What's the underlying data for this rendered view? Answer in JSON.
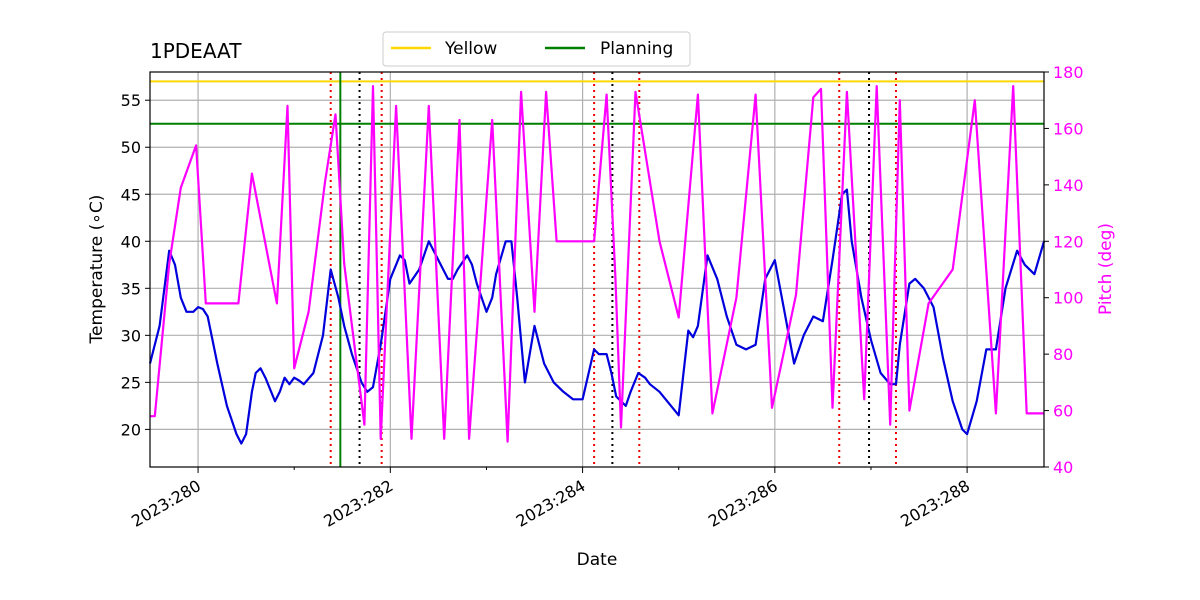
{
  "chart_data": {
    "type": "line",
    "title": "1PDEAAT",
    "xlabel": "Date",
    "ylabel": "Temperature ($^\\circ$C)",
    "ylabel_display": "Temperature (∘C)",
    "y2label": "Pitch (deg)",
    "xlim": [
      279.5,
      288.8
    ],
    "ylim": [
      16,
      58
    ],
    "y2lim": [
      40,
      180
    ],
    "x_ticks": [
      280,
      282,
      284,
      286,
      288
    ],
    "x_tick_labels": [
      "2023:280",
      "2023:282",
      "2023:284",
      "2023:286",
      "2023:288"
    ],
    "y_ticks": [
      20,
      25,
      30,
      35,
      40,
      45,
      50,
      55
    ],
    "y2_ticks": [
      40,
      60,
      80,
      100,
      120,
      140,
      160,
      180
    ],
    "grid": true,
    "legend": {
      "placement": "top-center",
      "entries": [
        {
          "name": "Yellow",
          "color": "#ffd700"
        },
        {
          "name": "Planning",
          "color": "#008000"
        }
      ]
    },
    "limits": {
      "yellow": 57.0,
      "planning": 52.5
    },
    "colors": {
      "temperature": "#0000dd",
      "pitch": "#ff00ff",
      "ylabel2": "#ff00ff"
    },
    "vlines_green": [
      281.48
    ],
    "vlines_red_dotted": [
      281.38,
      281.91,
      284.12,
      284.59,
      286.67,
      287.26
    ],
    "vlines_black_dotted": [
      281.68,
      284.31,
      286.98
    ],
    "series": [
      {
        "name": "Temperature",
        "axis": "left",
        "x": [
          279.5,
          279.6,
          279.7,
          279.76,
          279.82,
          279.88,
          279.95,
          280.0,
          280.05,
          280.1,
          280.2,
          280.3,
          280.4,
          280.45,
          280.5,
          280.56,
          280.6,
          280.65,
          280.7,
          280.8,
          280.85,
          280.9,
          280.95,
          281.0,
          281.05,
          281.1,
          281.2,
          281.3,
          281.38,
          281.46,
          281.52,
          281.6,
          281.7,
          281.76,
          281.82,
          281.9,
          282.0,
          282.1,
          282.15,
          282.2,
          282.3,
          282.4,
          282.5,
          282.6,
          282.65,
          282.7,
          282.8,
          282.85,
          282.9,
          283.0,
          283.06,
          283.1,
          283.2,
          283.26,
          283.32,
          283.4,
          283.5,
          283.6,
          283.7,
          283.8,
          283.9,
          284.0,
          284.12,
          284.17,
          284.25,
          284.3,
          284.35,
          284.45,
          284.5,
          284.58,
          284.65,
          284.7,
          284.8,
          285.0,
          285.05,
          285.1,
          285.15,
          285.2,
          285.3,
          285.4,
          285.5,
          285.6,
          285.7,
          285.8,
          285.9,
          286.0,
          286.1,
          286.2,
          286.3,
          286.4,
          286.5,
          286.6,
          286.7,
          286.75,
          286.8,
          286.9,
          287.0,
          287.1,
          287.2,
          287.26,
          287.3,
          287.4,
          287.46,
          287.55,
          287.65,
          287.75,
          287.85,
          287.95,
          288.0,
          288.1,
          288.2,
          288.3,
          288.4,
          288.52,
          288.6,
          288.7,
          288.8
        ],
        "values": [
          27,
          31,
          39,
          37.5,
          34,
          32.5,
          32.5,
          33,
          32.8,
          32,
          27,
          22.5,
          19.5,
          18.5,
          19.5,
          24,
          26,
          26.5,
          25.5,
          23,
          24,
          25.5,
          24.8,
          25.5,
          25.2,
          24.8,
          26,
          30,
          37,
          34,
          31,
          28,
          25,
          24,
          24.5,
          29,
          36,
          38.5,
          38,
          35.5,
          37,
          40,
          38,
          36,
          36,
          37,
          38.5,
          37.5,
          35.5,
          32.5,
          34,
          36.5,
          40,
          40,
          34,
          25,
          31,
          27,
          25,
          24,
          23.2,
          23.2,
          28.5,
          28,
          28,
          26,
          23.5,
          22.5,
          24,
          26,
          25.5,
          24.8,
          24,
          21.5,
          26,
          30.5,
          29.8,
          31,
          38.5,
          36,
          32,
          29,
          28.5,
          29,
          36,
          38,
          32.5,
          27,
          30,
          32,
          31.5,
          38,
          45,
          45.5,
          40,
          34,
          29.5,
          26,
          24.8,
          24.8,
          29,
          35.5,
          36,
          35,
          33,
          27.5,
          23,
          20,
          19.5,
          23,
          28.5,
          28.5,
          35,
          39,
          37.5,
          36.5,
          40
        ]
      },
      {
        "name": "Pitch",
        "axis": "right",
        "x": [
          279.5,
          279.55,
          279.55,
          279.7,
          279.7,
          279.82,
          279.82,
          279.98,
          279.98,
          280.08,
          280.08,
          280.42,
          280.42,
          280.56,
          280.56,
          280.82,
          280.82,
          280.93,
          280.93,
          281.0,
          281.0,
          281.15,
          281.15,
          281.32,
          281.32,
          281.43,
          281.43,
          281.52,
          281.52,
          281.73,
          281.73,
          281.82,
          281.82,
          281.9,
          281.9,
          282.06,
          282.06,
          282.22,
          282.22,
          282.4,
          282.4,
          282.56,
          282.56,
          282.72,
          282.72,
          282.82,
          282.82,
          283.06,
          283.06,
          283.22,
          283.22,
          283.36,
          283.36,
          283.5,
          283.5,
          283.62,
          283.62,
          283.73,
          283.73,
          284.12,
          284.12,
          284.25,
          284.25,
          284.34,
          284.34,
          284.4,
          284.4,
          284.55,
          284.55,
          284.8,
          284.8,
          285.0,
          285.0,
          285.2,
          285.2,
          285.35,
          285.35,
          285.6,
          285.6,
          285.8,
          285.8,
          285.97,
          285.97,
          286.22,
          286.22,
          286.4,
          286.4,
          286.48,
          286.48,
          286.6,
          286.6,
          286.75,
          286.75,
          286.93,
          286.93,
          287.06,
          287.06,
          287.2,
          287.2,
          287.3,
          287.3,
          287.4,
          287.4,
          287.6,
          287.6,
          287.85,
          287.85,
          288.08,
          288.08,
          288.3,
          288.3,
          288.48,
          288.48,
          288.62,
          288.62,
          288.8
        ],
        "values": [
          58,
          58,
          58,
          112,
          112,
          139,
          139,
          154,
          154,
          98,
          98,
          98,
          98,
          144,
          144,
          98,
          98,
          168,
          168,
          75,
          75,
          95,
          95,
          141,
          141,
          165,
          165,
          112,
          112,
          55,
          55,
          175,
          175,
          50,
          50,
          168,
          168,
          50,
          50,
          168,
          168,
          50,
          50,
          163,
          163,
          50,
          50,
          163,
          163,
          49,
          49,
          173,
          173,
          95,
          95,
          173,
          173,
          120,
          120,
          120,
          120,
          172,
          172,
          108,
          108,
          54,
          54,
          173,
          173,
          120,
          120,
          93,
          93,
          172,
          172,
          59,
          59,
          100,
          100,
          172,
          172,
          61,
          61,
          101,
          101,
          171,
          171,
          174,
          174,
          61,
          61,
          173,
          173,
          64,
          64,
          175,
          175,
          55,
          55,
          170,
          170,
          60,
          60,
          98,
          98,
          110,
          110,
          170,
          170,
          59,
          59,
          175,
          175,
          59,
          59,
          59
        ]
      }
    ]
  }
}
